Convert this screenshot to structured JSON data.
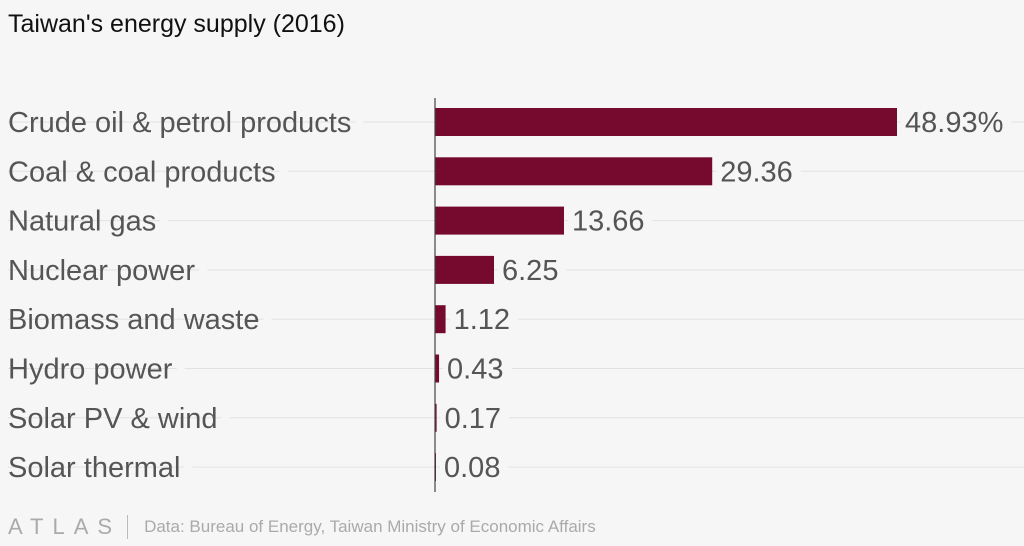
{
  "chart_data": {
    "type": "bar",
    "orientation": "horizontal",
    "title": "Taiwan's energy supply (2016)",
    "categories": [
      "Crude oil & petrol products",
      "Coal & coal products",
      "Natural gas",
      "Nuclear power",
      "Biomass and waste",
      "Hydro power",
      "Solar PV & wind",
      "Solar thermal"
    ],
    "values": [
      48.93,
      29.36,
      13.66,
      6.25,
      1.12,
      0.43,
      0.17,
      0.08
    ],
    "data_labels": [
      "48.93%",
      "29.36",
      "13.66",
      "6.25",
      "1.12",
      "0.43",
      "0.17",
      "0.08"
    ],
    "unit": "%",
    "xlim": [
      0,
      50
    ],
    "grid": true,
    "bar_color": "#750a2e"
  },
  "footer": {
    "logo": "ATLAS",
    "source": "Data: Bureau of Energy, Taiwan Ministry of Economic Affairs"
  }
}
